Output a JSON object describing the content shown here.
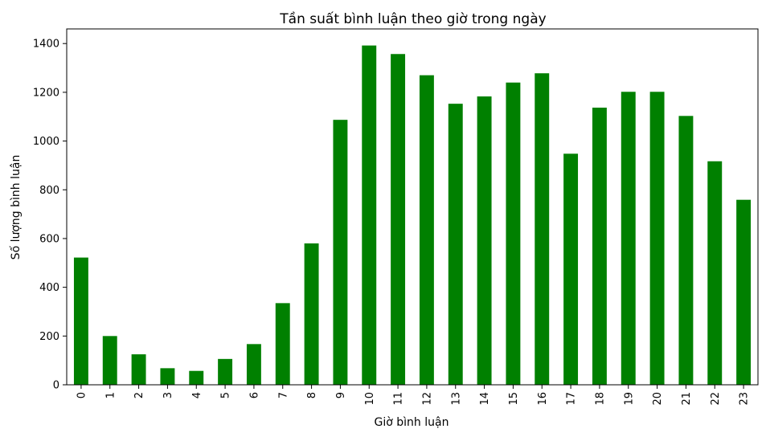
{
  "chart_data": {
    "type": "bar",
    "title": "Tần suất bình luận theo giờ trong ngày",
    "xlabel": "Giờ bình luận",
    "ylabel": "Số lượng bình luận",
    "categories": [
      "0",
      "1",
      "2",
      "3",
      "4",
      "5",
      "6",
      "7",
      "8",
      "9",
      "10",
      "11",
      "12",
      "13",
      "14",
      "15",
      "16",
      "17",
      "18",
      "19",
      "20",
      "21",
      "22",
      "23"
    ],
    "values": [
      522,
      200,
      125,
      68,
      57,
      106,
      167,
      335,
      580,
      1087,
      1392,
      1357,
      1270,
      1153,
      1183,
      1240,
      1278,
      948,
      1137,
      1202,
      1202,
      1103,
      917,
      759
    ],
    "ylim": [
      0,
      1460
    ],
    "yticks": [
      0,
      200,
      400,
      600,
      800,
      1000,
      1200,
      1400
    ],
    "bar_color": "#008000",
    "grid": false,
    "legend": "none"
  }
}
